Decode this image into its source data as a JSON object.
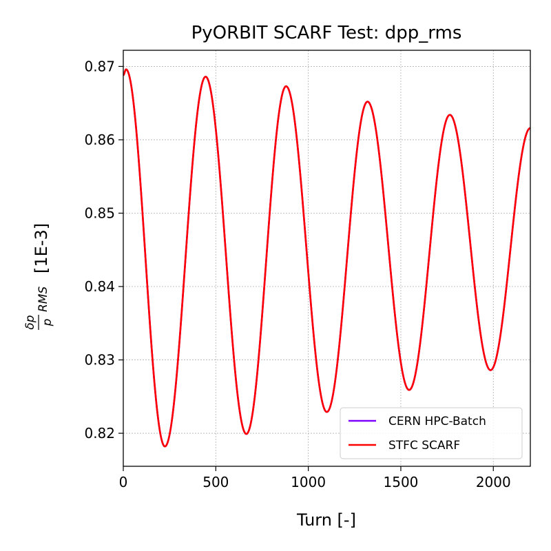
{
  "chart_data": {
    "type": "line",
    "title": "PyORBIT SCARF Test: dpp_rms",
    "xlabel": "Turn [-]",
    "ylabel": {
      "frac_num": "δp",
      "frac_den": "p",
      "subscript": "RMS",
      "unit": "[1E-3]"
    },
    "xlim": [
      0,
      2200
    ],
    "ylim": [
      0.8155,
      0.8722
    ],
    "x_ticks": [
      0,
      500,
      1000,
      1500,
      2000
    ],
    "x_tick_labels": [
      "0",
      "500",
      "1000",
      "1500",
      "2000"
    ],
    "y_ticks": [
      0.82,
      0.83,
      0.84,
      0.85,
      0.86,
      0.87
    ],
    "y_tick_labels": [
      "0.82",
      "0.83",
      "0.84",
      "0.85",
      "0.86",
      "0.87"
    ],
    "grid": true,
    "legend_position": "lower-right",
    "series": [
      {
        "name": "CERN HPC-Batch",
        "color": "#7f00ff",
        "x": [
          0,
          15,
          225,
          445,
          665,
          880,
          1100,
          1320,
          1545,
          1765,
          1985,
          2200
        ],
        "y": [
          0.8688,
          0.8696,
          0.8182,
          0.8686,
          0.8199,
          0.8673,
          0.8229,
          0.8652,
          0.8259,
          0.8634,
          0.8286,
          0.8616
        ]
      },
      {
        "name": "STFC SCARF",
        "color": "#ff0000",
        "x": [
          0,
          15,
          225,
          445,
          665,
          880,
          1100,
          1320,
          1545,
          1765,
          1985,
          2200
        ],
        "y": [
          0.8688,
          0.8696,
          0.8182,
          0.8686,
          0.8199,
          0.8673,
          0.8229,
          0.8652,
          0.8259,
          0.8634,
          0.8286,
          0.8616
        ]
      }
    ]
  }
}
